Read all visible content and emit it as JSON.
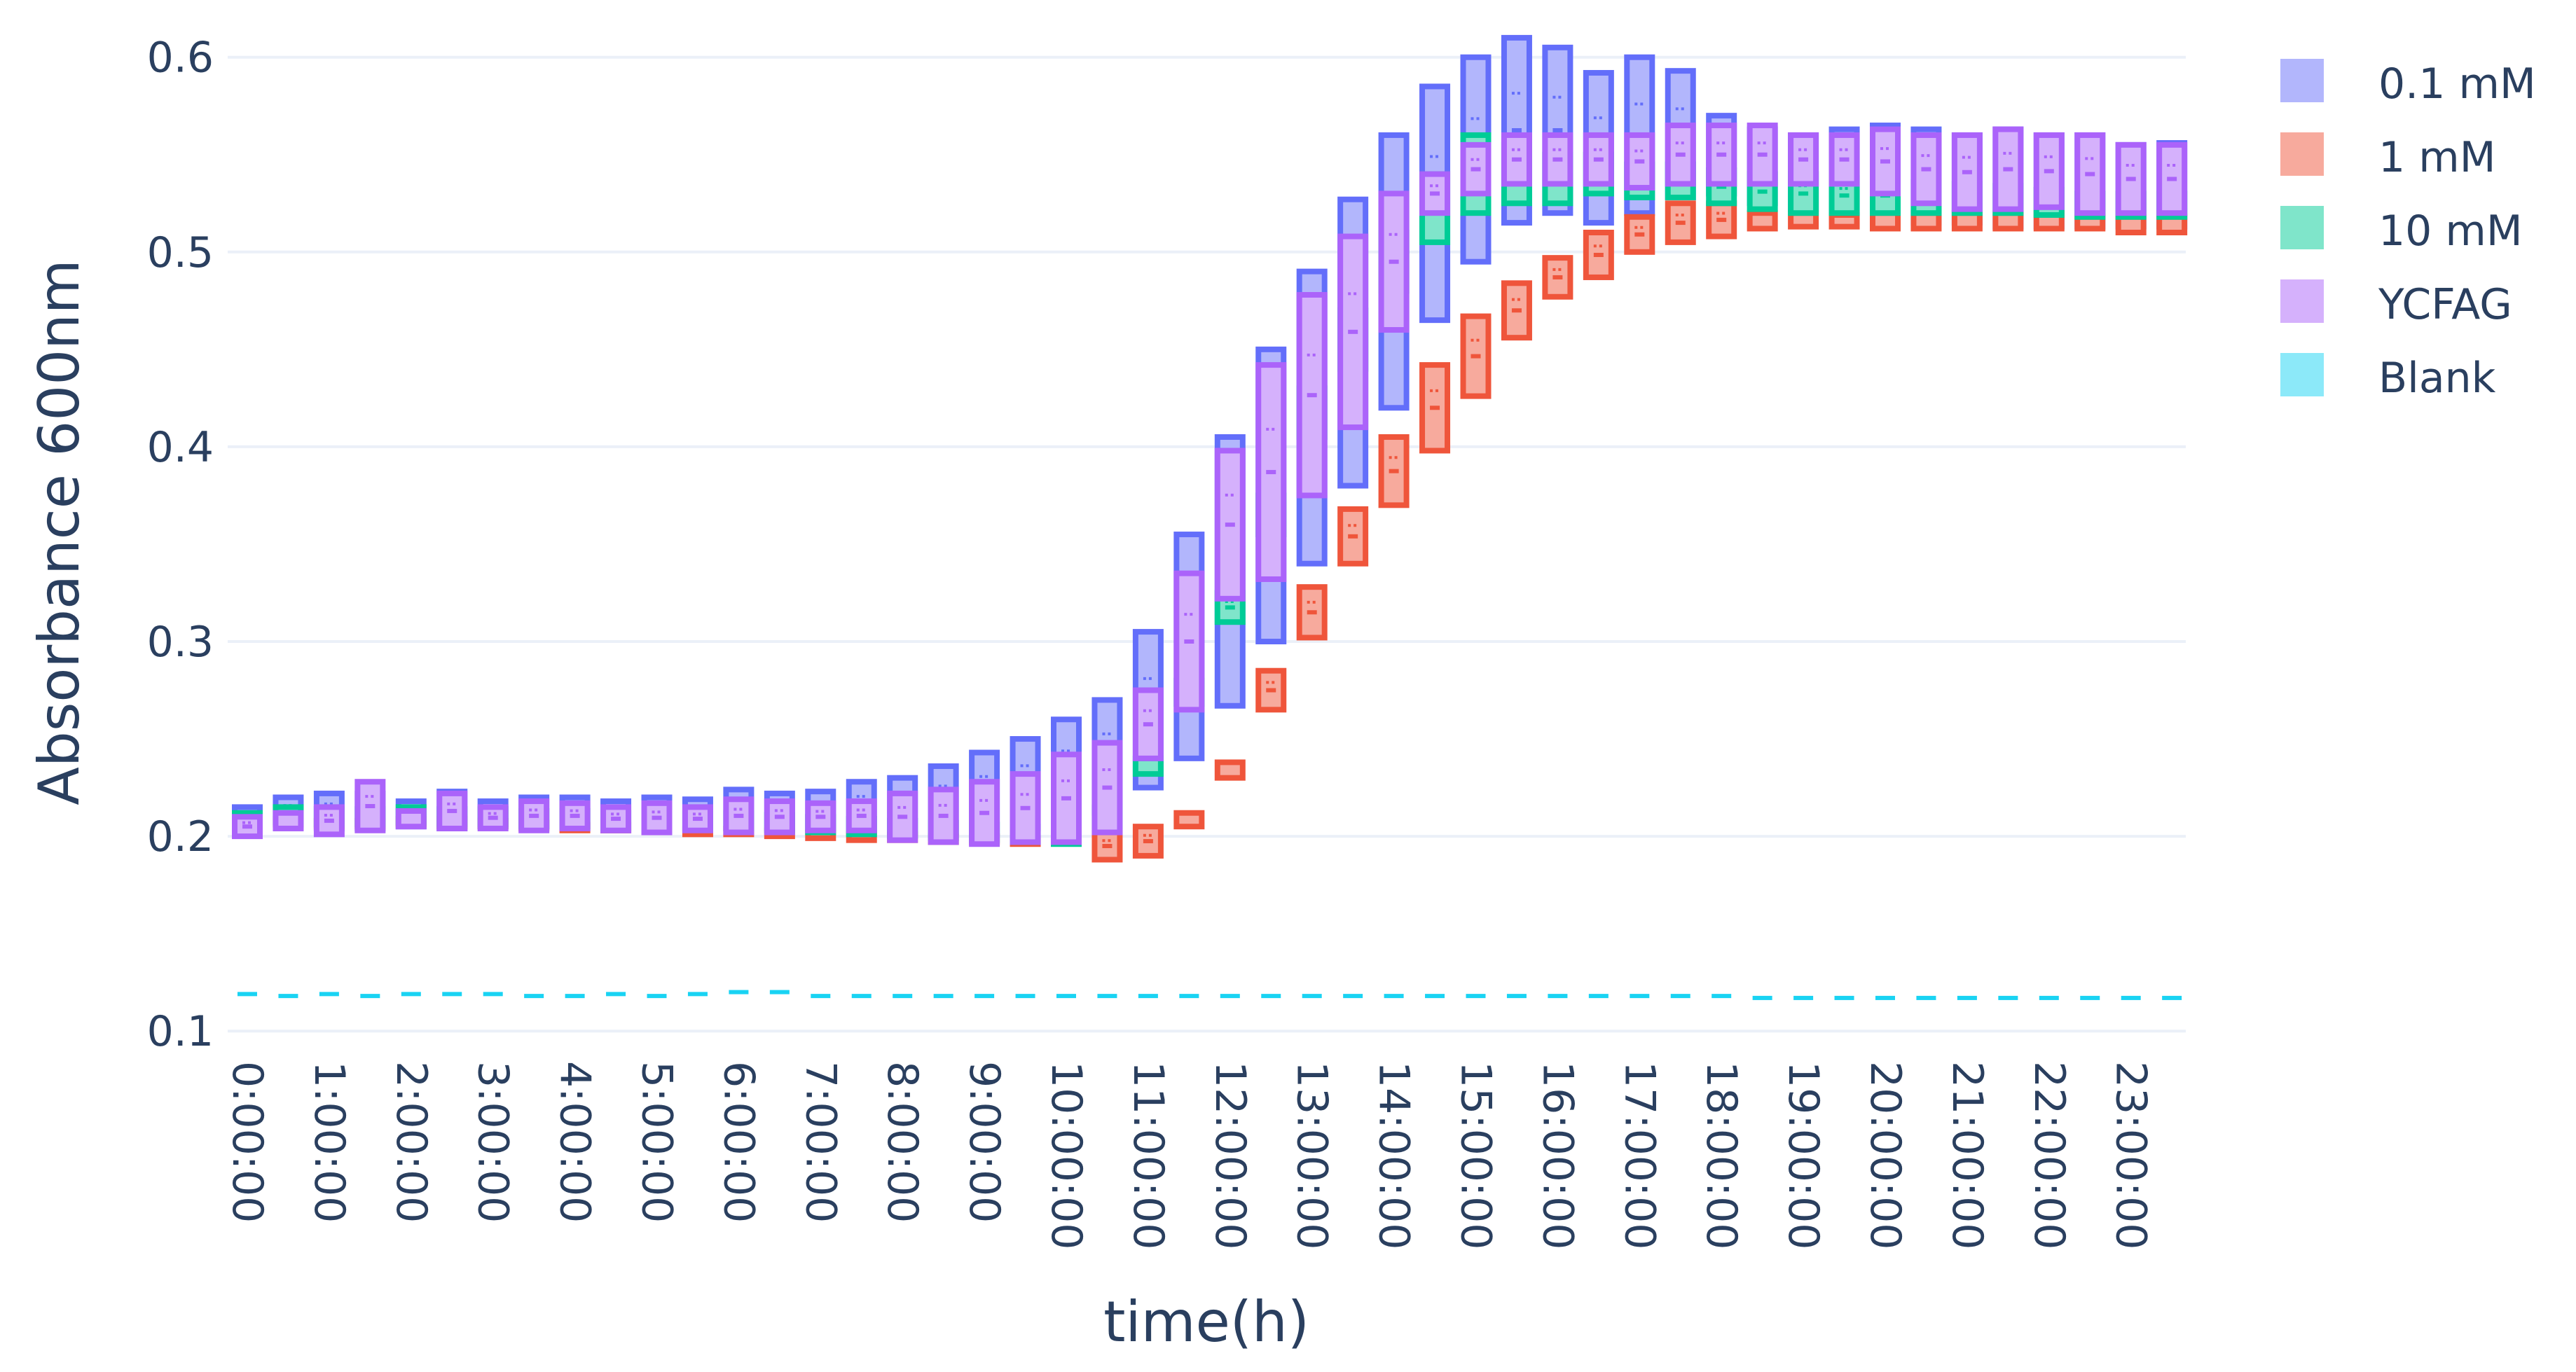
{
  "chart_data": {
    "type": "box",
    "xlabel": "time(h)",
    "ylabel": "Absorbance 600nm",
    "ylim": [
      0.09,
      0.615
    ],
    "yticks": [
      0.1,
      0.2,
      0.3,
      0.4,
      0.5,
      0.6
    ],
    "ytick_labels": [
      "0.1",
      "0.2",
      "0.3",
      "0.4",
      "0.5",
      "0.6"
    ],
    "xtick_labels": [
      "0:00:00",
      "1:00:00",
      "2:00:00",
      "3:00:00",
      "4:00:00",
      "5:00:00",
      "6:00:00",
      "7:00:00",
      "8:00:00",
      "9:00:00",
      "10:00:00",
      "11:00:00",
      "12:00:00",
      "13:00:00",
      "14:00:00",
      "15:00:00",
      "16:00:00",
      "17:00:00",
      "18:00:00",
      "19:00:00",
      "20:00:00",
      "21:00:00",
      "22:00:00",
      "23:00:00"
    ],
    "x_interval_minutes": 30,
    "grid": true,
    "legend_position": "top-right",
    "series": [
      {
        "name": "0.1 mM",
        "color": "#636efa",
        "fill": "#b2b6fc",
        "low": [
          0.203,
          0.206,
          0.204,
          0.204,
          0.205,
          0.204,
          0.205,
          0.205,
          0.204,
          0.203,
          0.203,
          0.203,
          0.204,
          0.204,
          0.204,
          0.203,
          0.202,
          0.202,
          0.202,
          0.204,
          0.206,
          0.212,
          0.225,
          0.24,
          0.267,
          0.3,
          0.34,
          0.38,
          0.42,
          0.465,
          0.495,
          0.515,
          0.52,
          0.515,
          0.52,
          0.528,
          0.53,
          0.525,
          0.522,
          0.52,
          0.518,
          0.515,
          0.515,
          0.513,
          0.513,
          0.513,
          0.513,
          0.513
        ],
        "high": [
          0.215,
          0.22,
          0.222,
          0.222,
          0.218,
          0.223,
          0.218,
          0.22,
          0.22,
          0.218,
          0.22,
          0.219,
          0.224,
          0.222,
          0.223,
          0.228,
          0.23,
          0.236,
          0.243,
          0.25,
          0.26,
          0.27,
          0.305,
          0.355,
          0.405,
          0.45,
          0.49,
          0.527,
          0.56,
          0.585,
          0.6,
          0.61,
          0.605,
          0.592,
          0.6,
          0.593,
          0.57,
          0.563,
          0.56,
          0.563,
          0.565,
          0.563,
          0.56,
          0.563,
          0.56,
          0.56,
          0.555,
          0.556
        ]
      },
      {
        "name": "1 mM",
        "color": "#ef553b",
        "fill": "#f7aa9d",
        "low": [
          0.205,
          0.206,
          0.205,
          0.205,
          0.206,
          0.205,
          0.205,
          0.204,
          0.203,
          0.203,
          0.202,
          0.201,
          0.201,
          0.2,
          0.199,
          0.198,
          0.198,
          0.197,
          0.197,
          0.196,
          0.197,
          0.188,
          0.19,
          0.205,
          0.23,
          0.265,
          0.302,
          0.34,
          0.37,
          0.398,
          0.426,
          0.456,
          0.477,
          0.487,
          0.5,
          0.505,
          0.508,
          0.512,
          0.513,
          0.513,
          0.512,
          0.512,
          0.512,
          0.512,
          0.512,
          0.512,
          0.51,
          0.51
        ],
        "high": [
          0.208,
          0.209,
          0.208,
          0.208,
          0.209,
          0.209,
          0.208,
          0.207,
          0.206,
          0.206,
          0.205,
          0.204,
          0.204,
          0.203,
          0.202,
          0.201,
          0.201,
          0.2,
          0.2,
          0.199,
          0.202,
          0.202,
          0.205,
          0.212,
          0.238,
          0.285,
          0.328,
          0.368,
          0.405,
          0.442,
          0.467,
          0.484,
          0.497,
          0.51,
          0.518,
          0.525,
          0.525,
          0.52,
          0.52,
          0.519,
          0.52,
          0.52,
          0.52,
          0.52,
          0.52,
          0.518,
          0.518,
          0.518
        ]
      },
      {
        "name": "10 mM",
        "color": "#00cc96",
        "fill": "#7fe5ca",
        "low": [
          0.205,
          0.207,
          0.206,
          0.206,
          0.207,
          0.206,
          0.206,
          0.205,
          0.205,
          0.204,
          0.204,
          0.204,
          0.204,
          0.203,
          0.202,
          0.201,
          0.2,
          0.199,
          0.198,
          0.197,
          0.196,
          0.205,
          0.232,
          0.268,
          0.31,
          0.355,
          0.405,
          0.44,
          0.48,
          0.505,
          0.52,
          0.525,
          0.525,
          0.53,
          0.528,
          0.528,
          0.525,
          0.522,
          0.52,
          0.52,
          0.52,
          0.52,
          0.52,
          0.52,
          0.519,
          0.518,
          0.518,
          0.518
        ],
        "high": [
          0.212,
          0.215,
          0.214,
          0.214,
          0.215,
          0.214,
          0.214,
          0.213,
          0.213,
          0.212,
          0.212,
          0.212,
          0.212,
          0.211,
          0.21,
          0.209,
          0.208,
          0.207,
          0.206,
          0.205,
          0.204,
          0.215,
          0.24,
          0.28,
          0.325,
          0.375,
          0.43,
          0.47,
          0.51,
          0.54,
          0.56,
          0.555,
          0.55,
          0.55,
          0.545,
          0.545,
          0.542,
          0.54,
          0.54,
          0.538,
          0.538,
          0.536,
          0.535,
          0.534,
          0.532,
          0.53,
          0.53,
          0.53
        ]
      },
      {
        "name": "YCFAG",
        "color": "#ab63fa",
        "fill": "#d5b1fc",
        "low": [
          0.2,
          0.204,
          0.201,
          0.203,
          0.205,
          0.204,
          0.204,
          0.203,
          0.204,
          0.203,
          0.202,
          0.203,
          0.202,
          0.202,
          0.203,
          0.203,
          0.198,
          0.197,
          0.196,
          0.197,
          0.197,
          0.202,
          0.24,
          0.265,
          0.322,
          0.332,
          0.375,
          0.41,
          0.46,
          0.52,
          0.53,
          0.535,
          0.535,
          0.535,
          0.533,
          0.535,
          0.535,
          0.535,
          0.535,
          0.535,
          0.53,
          0.525,
          0.522,
          0.522,
          0.523,
          0.52,
          0.52,
          0.52
        ],
        "high": [
          0.21,
          0.212,
          0.215,
          0.228,
          0.213,
          0.222,
          0.215,
          0.218,
          0.217,
          0.215,
          0.217,
          0.215,
          0.219,
          0.218,
          0.217,
          0.218,
          0.222,
          0.224,
          0.228,
          0.232,
          0.242,
          0.248,
          0.275,
          0.335,
          0.398,
          0.442,
          0.478,
          0.508,
          0.53,
          0.54,
          0.555,
          0.56,
          0.56,
          0.56,
          0.56,
          0.565,
          0.565,
          0.565,
          0.56,
          0.56,
          0.563,
          0.56,
          0.56,
          0.563,
          0.56,
          0.56,
          0.555,
          0.555
        ]
      },
      {
        "name": "Blank",
        "color": "#19d3f3",
        "fill": "#8ce9f9",
        "values": [
          0.119,
          0.118,
          0.119,
          0.118,
          0.119,
          0.119,
          0.119,
          0.118,
          0.118,
          0.119,
          0.118,
          0.119,
          0.12,
          0.12,
          0.118,
          0.118,
          0.118,
          0.118,
          0.118,
          0.118,
          0.118,
          0.118,
          0.118,
          0.118,
          0.118,
          0.118,
          0.118,
          0.118,
          0.118,
          0.118,
          0.118,
          0.118,
          0.118,
          0.118,
          0.118,
          0.118,
          0.118,
          0.117,
          0.117,
          0.117,
          0.117,
          0.117,
          0.117,
          0.117,
          0.117,
          0.117,
          0.117,
          0.117
        ]
      }
    ]
  }
}
